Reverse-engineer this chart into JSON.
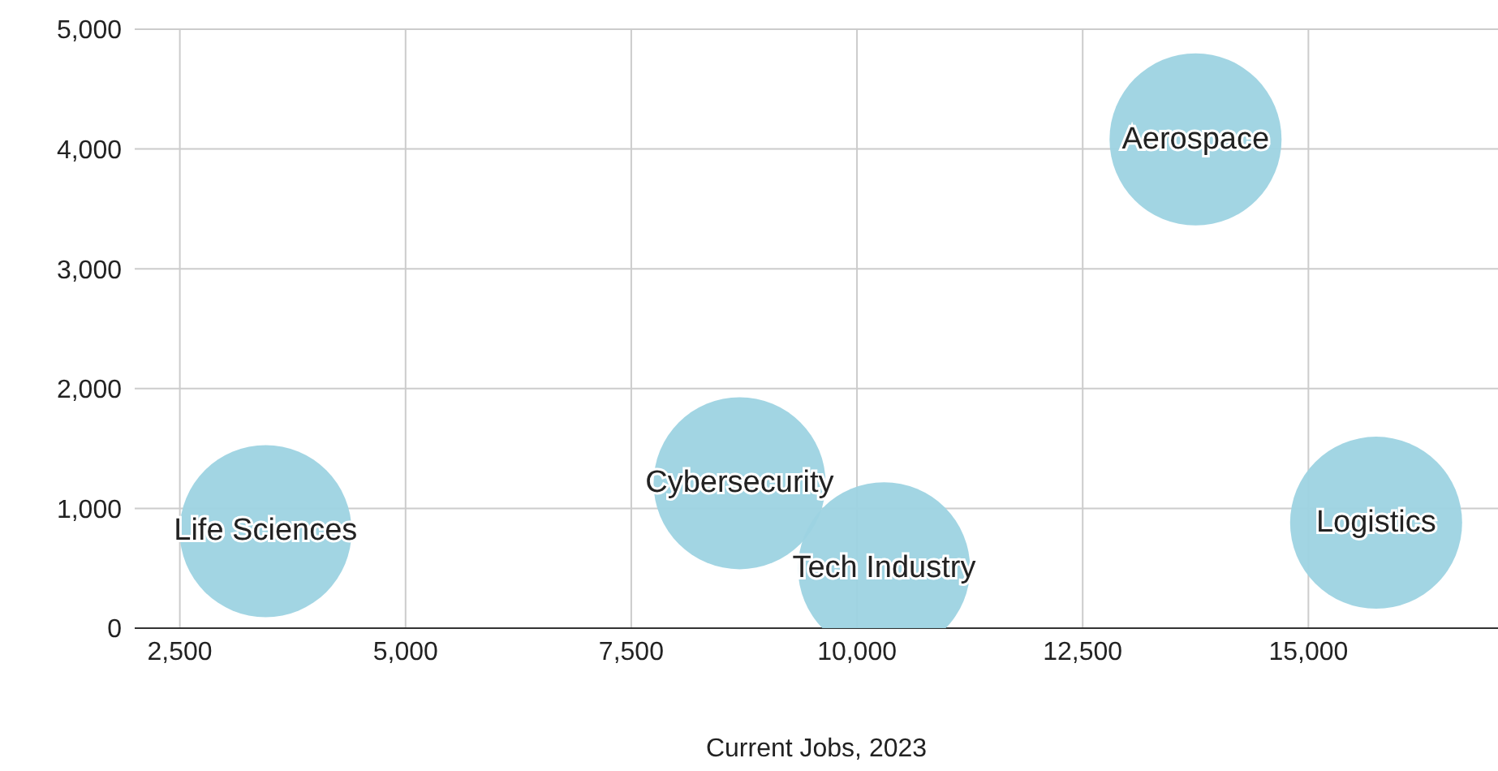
{
  "chart_data": {
    "type": "bubble",
    "xlabel": "Current Jobs, 2023",
    "series": [
      {
        "name": "Life Sciences",
        "color": "#9dd3e2",
        "x": [
          3450
        ],
        "values": [
          810
        ],
        "sizes": [
          1
        ]
      },
      {
        "name": "Cybersecurity",
        "color": "#9dd3e2",
        "x": [
          8700
        ],
        "values": [
          1210
        ],
        "sizes": [
          1
        ]
      },
      {
        "name": "Tech Industry",
        "color": "#9dd3e2",
        "x": [
          10300
        ],
        "values": [
          500
        ],
        "sizes": [
          1
        ]
      },
      {
        "name": "Aerospace",
        "color": "#9dd3e2",
        "x": [
          13750
        ],
        "values": [
          4080
        ],
        "sizes": [
          1
        ]
      },
      {
        "name": "Logistics",
        "color": "#9dd3e2",
        "x": [
          15750
        ],
        "values": [
          880
        ],
        "sizes": [
          1
        ]
      }
    ],
    "xlim": [
      2000,
      17100
    ],
    "xticks": [
      {
        "value": 2500,
        "label": "2,500"
      },
      {
        "value": 5000,
        "label": "5,000"
      },
      {
        "value": 7500,
        "label": "7,500"
      },
      {
        "value": 10000,
        "label": "10,000"
      },
      {
        "value": 12500,
        "label": "12,500"
      },
      {
        "value": 15000,
        "label": "15,000"
      }
    ],
    "ylim": [
      0,
      5000
    ],
    "yticks": [
      0,
      {
        "value": 1000,
        "label": "1,000"
      },
      {
        "value": 2000,
        "label": "2,000"
      },
      {
        "value": 3000,
        "label": "3,000"
      },
      {
        "value": 4000,
        "label": "4,000"
      },
      {
        "value": 5000,
        "label": "5,000"
      }
    ],
    "grid": true
  }
}
